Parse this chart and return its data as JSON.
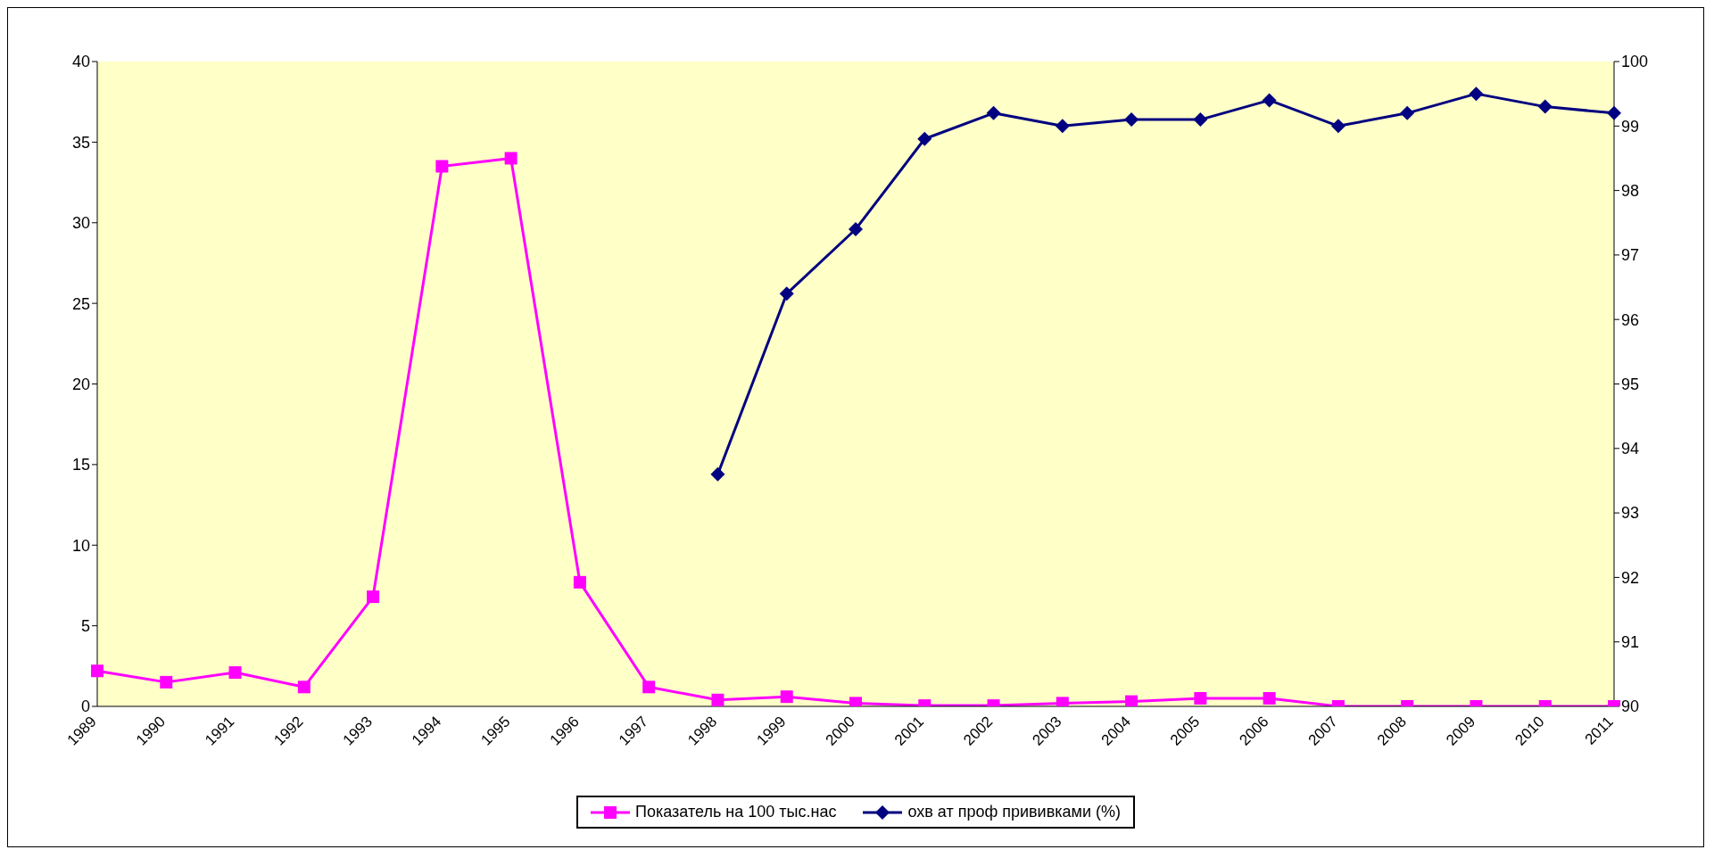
{
  "chart_data": {
    "type": "line",
    "categories": [
      "1989",
      "1990",
      "1991",
      "1992",
      "1993",
      "1994",
      "1995",
      "1996",
      "1997",
      "1998",
      "1999",
      "2000",
      "2001",
      "2002",
      "2003",
      "2004",
      "2005",
      "2006",
      "2007",
      "2008",
      "2009",
      "2010",
      "2011"
    ],
    "series": [
      {
        "name": "Показатель на 100 тыс.нас",
        "color": "#ff00ff",
        "marker": "square",
        "values": [
          2.2,
          1.5,
          2.1,
          1.2,
          6.8,
          33.5,
          34.0,
          7.7,
          1.2,
          0.4,
          0.6,
          0.2,
          0.05,
          0.05,
          0.2,
          0.3,
          0.5,
          0.5,
          0,
          0,
          0,
          0,
          0
        ]
      },
      {
        "name": "охв ат проф прививками (%)",
        "color": "#000080",
        "marker": "diamond",
        "axis": "y2",
        "values": [
          null,
          null,
          null,
          null,
          null,
          null,
          null,
          null,
          null,
          93.6,
          96.4,
          97.4,
          98.8,
          99.2,
          99.0,
          99.1,
          99.1,
          99.4,
          99.0,
          99.2,
          99.5,
          99.3,
          99.2
        ]
      }
    ],
    "ylim": [
      0,
      40
    ],
    "yticks": [
      0,
      5,
      10,
      15,
      20,
      25,
      30,
      35,
      40
    ],
    "y2lim": [
      90,
      100
    ],
    "y2ticks": [
      90,
      91,
      92,
      93,
      94,
      95,
      96,
      97,
      98,
      99,
      100
    ],
    "grid": false,
    "legend": "bottom",
    "line_style": "solid"
  }
}
